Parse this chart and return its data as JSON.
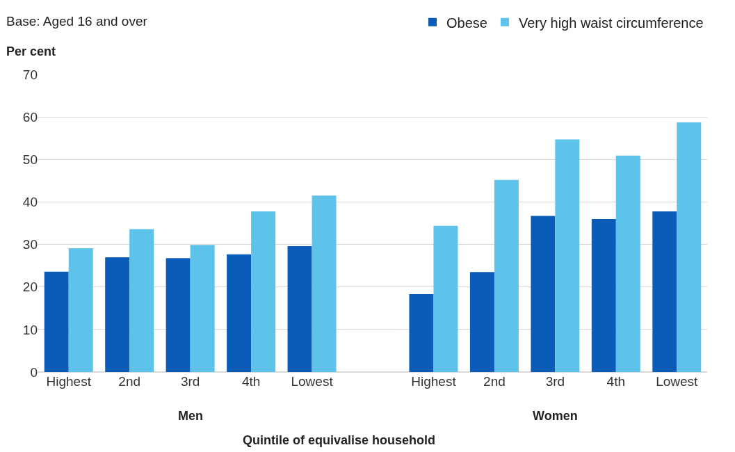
{
  "chart_data": {
    "type": "bar",
    "categories": [
      "Highest",
      "2nd",
      "3rd",
      "4th",
      "Lowest",
      null,
      "Highest",
      "2nd",
      "3rd",
      "4th",
      "Lowest"
    ],
    "series": [
      {
        "name": "Obese",
        "color": "#0a5cb8",
        "values": [
          23.6,
          27.0,
          26.8,
          27.7,
          29.6,
          null,
          18.3,
          23.5,
          36.7,
          36.0,
          37.8
        ]
      },
      {
        "name": "Very high waist circumference",
        "color": "#5ec3ea",
        "values": [
          29.1,
          33.6,
          29.9,
          37.8,
          41.5,
          null,
          34.4,
          45.2,
          54.7,
          50.9,
          58.7
        ]
      }
    ],
    "ylabel": "Per cent",
    "xlabel": "Quintile of equivalise household",
    "annotations": [
      "Base: Aged 16 and over",
      "Men",
      "Women"
    ],
    "ylim": [
      0,
      70
    ],
    "yticks": [
      0,
      10,
      20,
      30,
      40,
      50,
      60,
      70
    ],
    "grid": "y",
    "legend": "top right"
  }
}
